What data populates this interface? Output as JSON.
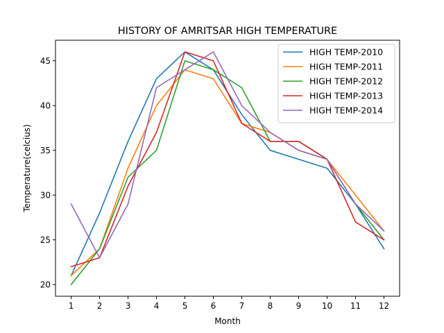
{
  "chart_data": {
    "type": "line",
    "title": "HISTORY OF AMRITSAR HIGH TEMPERATURE",
    "xlabel": "Month",
    "ylabel": "Temperature(celcius)",
    "x": [
      1,
      2,
      3,
      4,
      5,
      6,
      7,
      8,
      9,
      10,
      11,
      12
    ],
    "x_ticks": [
      "1",
      "2",
      "3",
      "4",
      "5",
      "6",
      "7",
      "8",
      "9",
      "10",
      "11",
      "12"
    ],
    "y_ticks": [
      "20",
      "25",
      "30",
      "35",
      "40",
      "45"
    ],
    "xlim": [
      0.45,
      12.55
    ],
    "ylim": [
      18.7,
      47.3
    ],
    "grid": false,
    "legend_position": "top-right",
    "series": [
      {
        "name": "HIGH TEMP-2010",
        "color": "#1f77b4",
        "values": [
          21,
          28,
          36,
          43,
          46,
          44,
          39,
          35,
          34,
          33,
          29,
          24
        ]
      },
      {
        "name": "HIGH TEMP-2011",
        "color": "#ff7f0e",
        "values": [
          21,
          24,
          33,
          40,
          44,
          43,
          38,
          37,
          35,
          34,
          30,
          26
        ]
      },
      {
        "name": "HIGH TEMP-2012",
        "color": "#2ca02c",
        "values": [
          20,
          24,
          32,
          35,
          45,
          44,
          42,
          36,
          36,
          34,
          29,
          25
        ]
      },
      {
        "name": "HIGH TEMP-2013",
        "color": "#d62728",
        "values": [
          22,
          23,
          31,
          37,
          46,
          45,
          38,
          36,
          36,
          34,
          27,
          25
        ]
      },
      {
        "name": "HIGH TEMP-2014",
        "color": "#9467bd",
        "values": [
          29,
          23,
          29,
          42,
          44,
          46,
          40,
          37,
          35,
          34,
          29,
          26
        ]
      }
    ]
  }
}
